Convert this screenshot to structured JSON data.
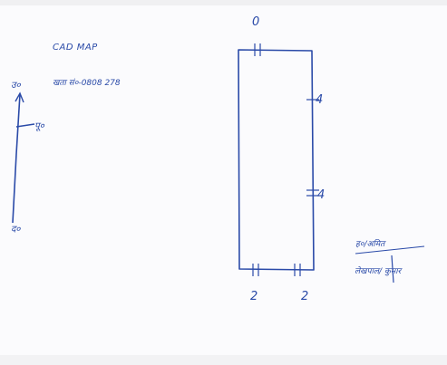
{
  "map": {
    "title": "CAD MAP",
    "khata_text": "खता सं०-0808 278"
  },
  "compass": {
    "north": "उ०",
    "east": "पू०",
    "south": "द०"
  },
  "sides": {
    "top": "0",
    "right_upper": "4",
    "right_lower": "4",
    "bottom_left": "2",
    "bottom_right": "2"
  },
  "signature": {
    "line1": "ह०/अमित",
    "line2": "लेखपाल/ कुमार"
  },
  "colors": {
    "ink": "#2a4aa8",
    "paper": "#fbfbfd"
  }
}
